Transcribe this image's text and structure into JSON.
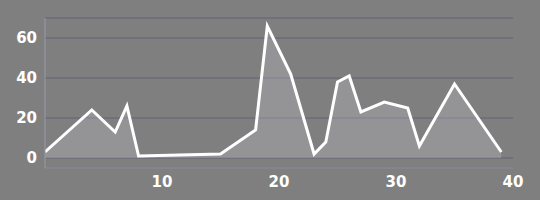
{
  "chart_data": {
    "type": "area",
    "x": [
      0,
      4,
      6,
      7,
      8,
      15,
      18,
      19,
      21,
      23,
      24,
      25,
      26,
      27,
      29,
      31,
      32,
      35,
      39
    ],
    "values": [
      3,
      24,
      13,
      26,
      1,
      2,
      14,
      66,
      42,
      2,
      8,
      38,
      41,
      23,
      28,
      25,
      6,
      37,
      3
    ],
    "color": "#ffffff",
    "xlim": [
      0,
      40
    ],
    "xticks": [
      10,
      20,
      30,
      40
    ],
    "ylim": [
      -5,
      70
    ],
    "yticks": [
      0,
      20,
      40,
      60
    ],
    "grid": true
  }
}
